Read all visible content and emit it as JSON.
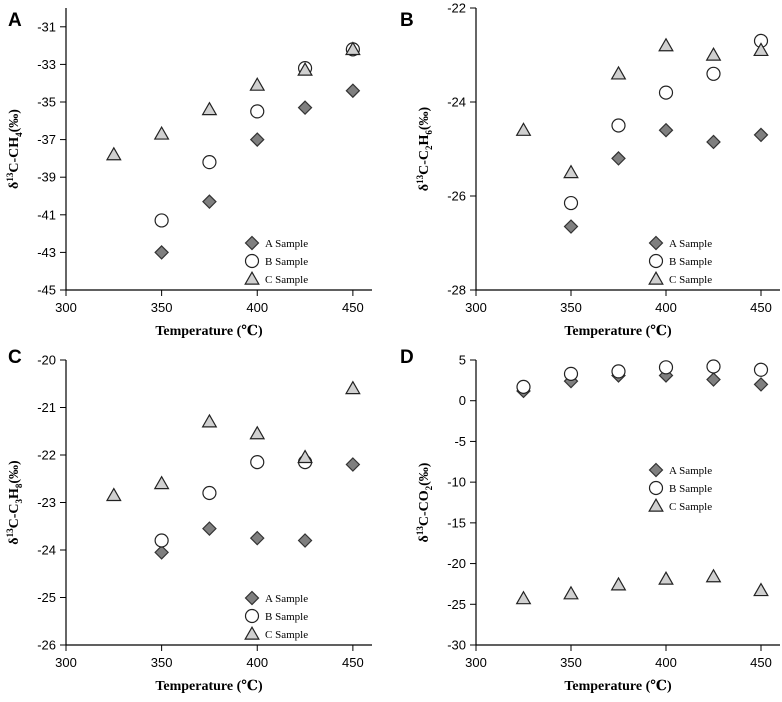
{
  "figure": {
    "x_axis_label": "Temperature (℃)"
  },
  "legend": [
    "A Sample",
    "B Sample",
    "C Sample"
  ],
  "series_styles": {
    "A Sample": {
      "marker": "diamond",
      "fill": "#7f7f7f",
      "stroke": "#333333"
    },
    "B Sample": {
      "marker": "circle",
      "fill": "#ffffff",
      "stroke": "#222222"
    },
    "C Sample": {
      "marker": "triangle",
      "fill": "#d0d0d0",
      "stroke": "#222222"
    }
  },
  "chart_data": [
    {
      "panel": "A",
      "type": "scatter",
      "title": "",
      "ylabel": {
        "pre": "δ",
        "sup": "13",
        "main": "C-CH",
        "sub": "4",
        "post": "(‰)"
      },
      "xlabel": "Temperature (℃)",
      "xlim": [
        300,
        460
      ],
      "ylim": [
        -45,
        -30
      ],
      "xticks": [
        300,
        350,
        400,
        450
      ],
      "yticks": [
        -45,
        -43,
        -41,
        -39,
        -37,
        -35,
        -33,
        -31
      ],
      "legend_position": "bottom-right",
      "series": [
        {
          "name": "A Sample",
          "x": [
            350,
            375,
            400,
            425,
            450
          ],
          "y": [
            -43.0,
            -40.3,
            -37.0,
            -35.3,
            -34.4
          ]
        },
        {
          "name": "B Sample",
          "x": [
            350,
            375,
            400,
            425,
            450
          ],
          "y": [
            -41.3,
            -38.2,
            -35.5,
            -33.2,
            -32.2
          ]
        },
        {
          "name": "C Sample",
          "x": [
            325,
            350,
            375,
            400,
            425,
            450
          ],
          "y": [
            -37.8,
            -36.7,
            -35.4,
            -34.1,
            -33.3,
            -32.2
          ]
        }
      ]
    },
    {
      "panel": "B",
      "type": "scatter",
      "title": "",
      "ylabel": {
        "pre": "δ",
        "sup": "13",
        "main": "C-C",
        "sub": "2",
        "main2": "H",
        "sub2": "6",
        "post": "(‰)"
      },
      "xlabel": "Temperature (℃)",
      "xlim": [
        300,
        460
      ],
      "ylim": [
        -28,
        -22
      ],
      "xticks": [
        300,
        350,
        400,
        450
      ],
      "yticks": [
        -28,
        -26,
        -24,
        -22
      ],
      "legend_position": "bottom-right",
      "series": [
        {
          "name": "A Sample",
          "x": [
            350,
            375,
            400,
            425,
            450
          ],
          "y": [
            -26.65,
            -25.2,
            -24.6,
            -24.85,
            -24.7
          ]
        },
        {
          "name": "B Sample",
          "x": [
            350,
            375,
            400,
            425,
            450
          ],
          "y": [
            -26.15,
            -24.5,
            -23.8,
            -23.4,
            -22.7
          ]
        },
        {
          "name": "C Sample",
          "x": [
            325,
            350,
            375,
            400,
            425,
            450
          ],
          "y": [
            -24.6,
            -25.5,
            -23.4,
            -22.8,
            -23.0,
            -22.9
          ]
        }
      ]
    },
    {
      "panel": "C",
      "type": "scatter",
      "title": "",
      "ylabel": {
        "pre": "δ",
        "sup": "13",
        "main": "C-C",
        "sub": "3",
        "main2": "H",
        "sub2": "8",
        "post": "(‰)"
      },
      "xlabel": "Temperature (℃)",
      "xlim": [
        300,
        460
      ],
      "ylim": [
        -26,
        -20
      ],
      "xticks": [
        300,
        350,
        400,
        450
      ],
      "yticks": [
        -26,
        -25,
        -24,
        -23,
        -22,
        -21,
        -20
      ],
      "legend_position": "bottom-right",
      "series": [
        {
          "name": "A Sample",
          "x": [
            350,
            375,
            400,
            425,
            450
          ],
          "y": [
            -24.05,
            -23.55,
            -23.75,
            -23.8,
            -22.2
          ]
        },
        {
          "name": "B Sample",
          "x": [
            350,
            375,
            400,
            425
          ],
          "y": [
            -23.8,
            -22.8,
            -22.15,
            -22.15
          ]
        },
        {
          "name": "C Sample",
          "x": [
            325,
            350,
            375,
            400,
            425,
            450
          ],
          "y": [
            -22.85,
            -22.6,
            -21.3,
            -21.55,
            -22.05,
            -20.6
          ]
        }
      ]
    },
    {
      "panel": "D",
      "type": "scatter",
      "title": "",
      "ylabel": {
        "pre": "δ",
        "sup": "13",
        "main": "C-CO",
        "sub": "2",
        "post": "(‰)"
      },
      "xlabel": "Temperature (℃)",
      "xlim": [
        300,
        460
      ],
      "ylim": [
        -30,
        5
      ],
      "xticks": [
        300,
        350,
        400,
        450
      ],
      "yticks": [
        -30,
        -25,
        -20,
        -15,
        -10,
        -5,
        0,
        5
      ],
      "legend_position": "middle-right",
      "series": [
        {
          "name": "A Sample",
          "x": [
            325,
            350,
            375,
            400,
            425,
            450
          ],
          "y": [
            1.2,
            2.4,
            3.1,
            3.1,
            2.6,
            2.0
          ]
        },
        {
          "name": "B Sample",
          "x": [
            325,
            350,
            375,
            400,
            425,
            450
          ],
          "y": [
            1.7,
            3.3,
            3.6,
            4.1,
            4.2,
            3.8
          ]
        },
        {
          "name": "C Sample",
          "x": [
            325,
            350,
            375,
            400,
            425,
            450
          ],
          "y": [
            -24.3,
            -23.7,
            -22.6,
            -21.9,
            -21.6,
            -23.3
          ]
        }
      ]
    }
  ]
}
